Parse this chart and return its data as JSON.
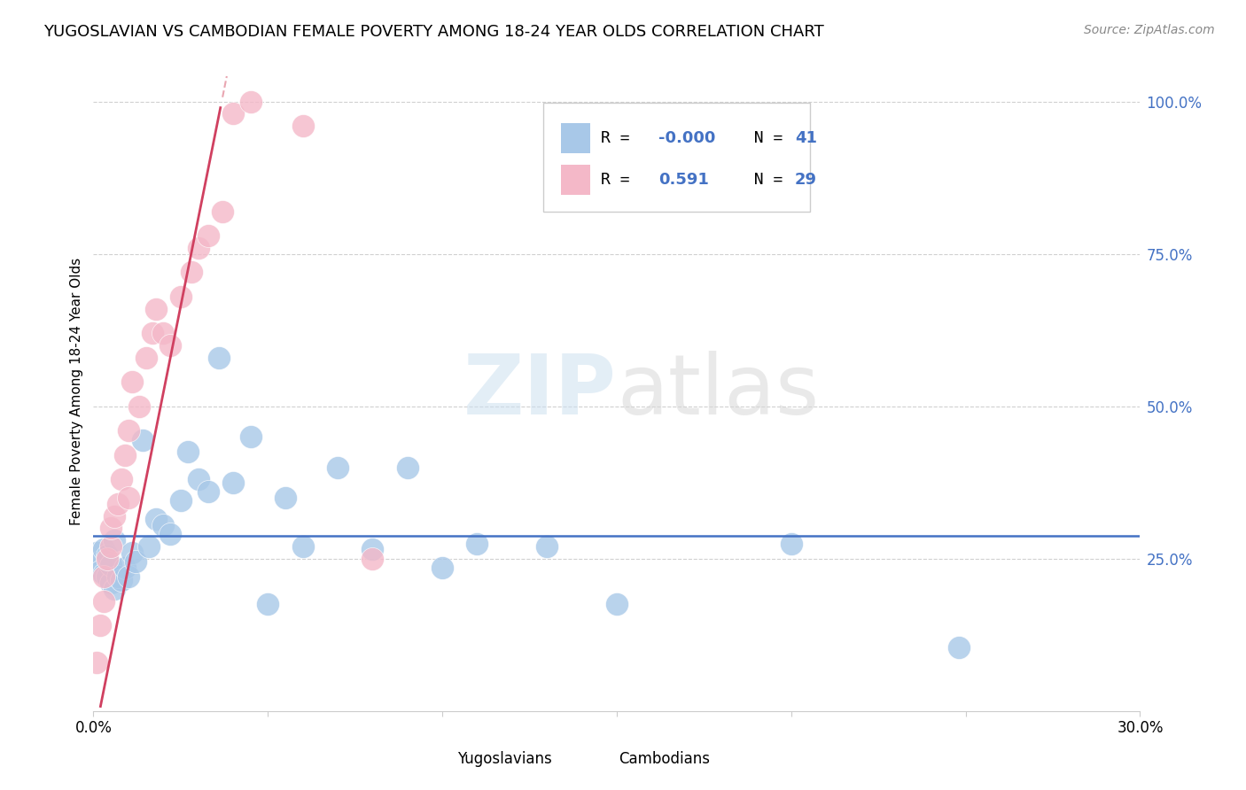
{
  "title": "YUGOSLAVIAN VS CAMBODIAN FEMALE POVERTY AMONG 18-24 YEAR OLDS CORRELATION CHART",
  "source": "Source: ZipAtlas.com",
  "ylabel": "Female Poverty Among 18-24 Year Olds",
  "xlim": [
    0.0,
    0.3
  ],
  "ylim": [
    0.0,
    1.05
  ],
  "background_color": "#ffffff",
  "grid_color": "#d0d0d0",
  "blue_color": "#a8c8e8",
  "pink_color": "#f4b8c8",
  "trend_blue_color": "#4472c4",
  "trend_pink_color": "#d04060",
  "trend_pink_dash_color": "#e08090",
  "legend_r_yug": "-0.000",
  "legend_n_yug": "41",
  "legend_r_cam": "0.591",
  "legend_n_cam": "29",
  "yug_x": [
    0.001,
    0.002,
    0.002,
    0.003,
    0.003,
    0.004,
    0.004,
    0.005,
    0.005,
    0.006,
    0.006,
    0.007,
    0.008,
    0.009,
    0.01,
    0.011,
    0.012,
    0.014,
    0.016,
    0.018,
    0.02,
    0.022,
    0.025,
    0.027,
    0.03,
    0.033,
    0.036,
    0.04,
    0.045,
    0.05,
    0.055,
    0.06,
    0.07,
    0.08,
    0.09,
    0.1,
    0.11,
    0.13,
    0.15,
    0.2,
    0.248
  ],
  "yug_y": [
    0.26,
    0.245,
    0.23,
    0.225,
    0.265,
    0.22,
    0.255,
    0.21,
    0.24,
    0.2,
    0.28,
    0.22,
    0.215,
    0.235,
    0.22,
    0.26,
    0.245,
    0.445,
    0.27,
    0.315,
    0.305,
    0.29,
    0.345,
    0.425,
    0.38,
    0.36,
    0.58,
    0.375,
    0.45,
    0.175,
    0.35,
    0.27,
    0.4,
    0.265,
    0.4,
    0.235,
    0.275,
    0.27,
    0.175,
    0.275,
    0.105
  ],
  "cam_x": [
    0.001,
    0.002,
    0.003,
    0.003,
    0.004,
    0.005,
    0.005,
    0.006,
    0.007,
    0.008,
    0.009,
    0.01,
    0.011,
    0.013,
    0.015,
    0.017,
    0.018,
    0.02,
    0.022,
    0.025,
    0.028,
    0.03,
    0.033,
    0.037,
    0.04,
    0.045,
    0.06,
    0.08,
    0.01
  ],
  "cam_y": [
    0.08,
    0.14,
    0.18,
    0.22,
    0.25,
    0.27,
    0.3,
    0.32,
    0.34,
    0.38,
    0.42,
    0.46,
    0.54,
    0.5,
    0.58,
    0.62,
    0.66,
    0.62,
    0.6,
    0.68,
    0.72,
    0.76,
    0.78,
    0.82,
    0.98,
    1.0,
    0.96,
    0.25,
    0.35
  ]
}
